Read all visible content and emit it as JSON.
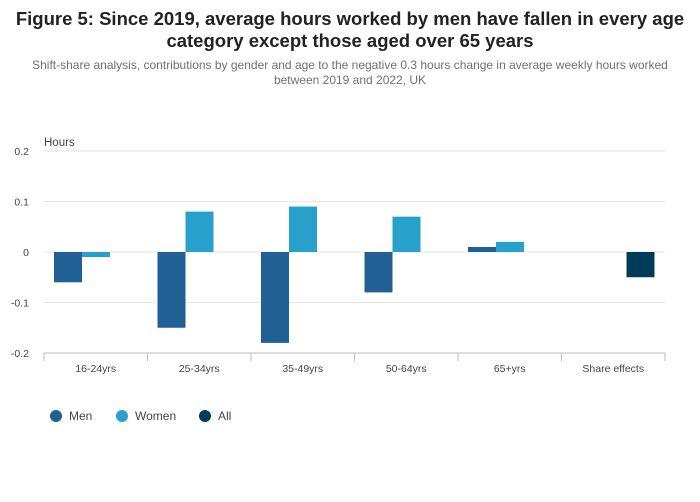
{
  "title": "Figure 5: Since 2019, average hours worked by men have fallen in every age category except those aged over 65 years",
  "subtitle": "Shift-share analysis, contributions by gender and age to the negative 0.3 hours change in average weekly hours worked between 2019 and 2022, UK",
  "colors": {
    "Men": "#206095",
    "Women": "#27a0cc",
    "All": "#003c57",
    "grid": "#e6e6e6",
    "axis": "#bebebe"
  },
  "chart_data": {
    "type": "bar",
    "title": "Figure 5: Since 2019, average hours worked by men have fallen in every age category except those aged over 65 years",
    "subtitle": "Shift-share analysis, contributions by gender and age to the negative 0.3 hours change in average weekly hours worked between 2019 and 2022, UK",
    "xlabel": "",
    "ylabel": "Hours",
    "ylim": [
      -0.2,
      0.2
    ],
    "yticks": [
      0.2,
      0.1,
      0,
      -0.1,
      -0.2
    ],
    "ytick_labels": [
      "0.2",
      "0.1",
      "0",
      "-0.1",
      "-0.2"
    ],
    "grid": true,
    "legend_position": "bottom-left",
    "categories": [
      "16-24yrs",
      "25-34yrs",
      "35-49yrs",
      "50-64yrs",
      "65+yrs",
      "Share effects"
    ],
    "series": [
      {
        "name": "Men",
        "values": [
          -0.06,
          -0.15,
          -0.18,
          -0.08,
          0.01,
          null
        ]
      },
      {
        "name": "Women",
        "values": [
          -0.01,
          0.08,
          0.09,
          0.07,
          0.02,
          null
        ]
      },
      {
        "name": "All",
        "values": [
          null,
          null,
          null,
          null,
          null,
          -0.05
        ]
      }
    ]
  }
}
